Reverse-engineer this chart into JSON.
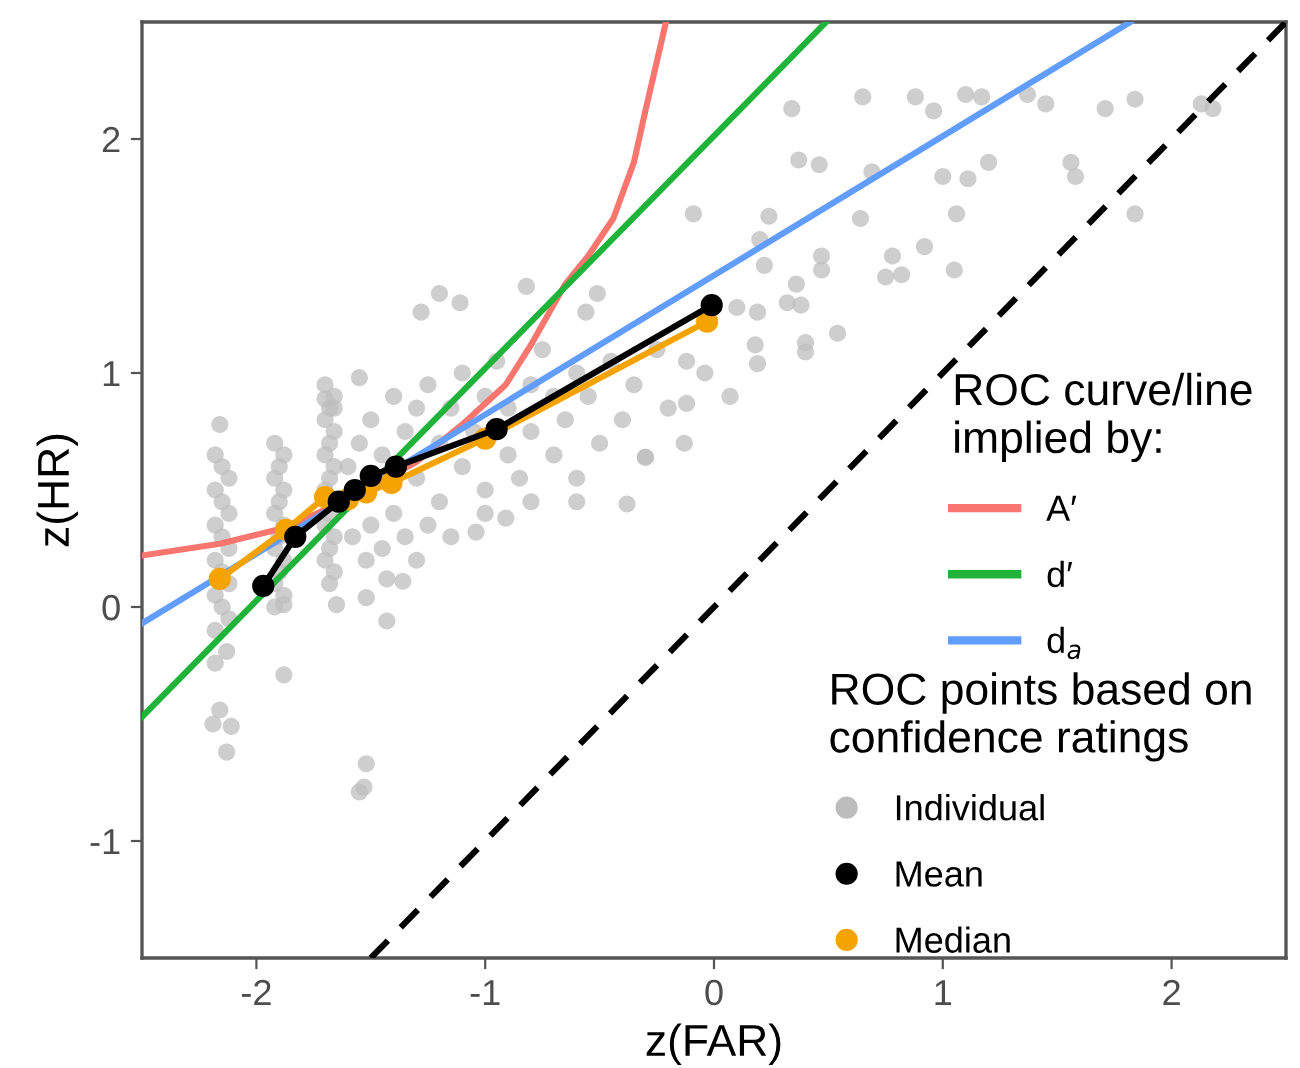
{
  "chart_data": {
    "type": "scatter",
    "xlabel": "z(FAR)",
    "ylabel": "z(HR)",
    "legend_title": [
      "ROC curve/line\nimplied by:",
      "ROC points based on\nconfidence ratings"
    ],
    "xlim": [
      -2.5,
      2.5
    ],
    "ylim": [
      -1.5,
      2.5
    ],
    "xticks": [
      -2,
      -1,
      0,
      1,
      2
    ],
    "yticks": [
      -1,
      0,
      1,
      2
    ],
    "grid": false,
    "legend": "right",
    "series": [
      {
        "name": "Individual",
        "color": "#bdbdbd",
        "marker": "circle",
        "x": [
          0.34,
          0.65,
          0.88,
          0.96,
          1.1,
          1.17,
          1.37,
          1.45,
          1.71,
          1.84,
          2.13,
          2.18,
          0.37,
          0.46,
          0.69,
          1.0,
          1.11,
          1.2,
          1.56,
          1.58,
          -0.09,
          0.24,
          0.64,
          1.06,
          1.84,
          0.2,
          0.47,
          0.22,
          0.47,
          0.78,
          0.92,
          0.75,
          0.82,
          1.05,
          0.36,
          0.32,
          0.38,
          0.1,
          0.19,
          0.54,
          0.4,
          0.4,
          0.18,
          0.19,
          0.07,
          -0.12,
          -0.04,
          -0.12,
          -0.13,
          -0.3,
          -1.2,
          -1.11,
          -1.28,
          -0.82,
          -0.51,
          -0.56,
          -2.16,
          -1.7,
          -1.55,
          -0.3,
          -0.38,
          -1.88,
          -2.16,
          -2.19,
          -2.11,
          -2.13,
          -1.52,
          -1.53,
          -1.55,
          -2.18,
          -2.13,
          -1.43,
          -1.52,
          -1.65,
          -1.92,
          -1.88,
          -1.43,
          -1.36,
          -1.04,
          -0.91,
          -2.18,
          -2.15,
          -2.12,
          -2.18,
          -2.15,
          -2.12,
          -2.18,
          -2.15,
          -2.12,
          -2.18,
          -2.15,
          -2.12,
          -2.18,
          -2.15,
          -2.12,
          -2.18,
          -1.92,
          -1.88,
          -1.9,
          -1.92,
          -1.88,
          -1.9,
          -1.92,
          -1.88,
          -1.9,
          -1.92,
          -1.88,
          -1.9,
          -1.92,
          -1.88,
          -1.7,
          -1.66,
          -1.68,
          -1.7,
          -1.66,
          -1.68,
          -1.7,
          -1.66,
          -1.68,
          -1.7,
          -1.66,
          -1.68,
          -1.7,
          -1.66,
          -1.68,
          -1.7,
          -1.66,
          -1.68,
          -1.55,
          -1.5,
          -1.45,
          -1.4,
          -1.35,
          -1.3,
          -1.3,
          -1.25,
          -1.2,
          -1.2,
          -1.15,
          -1.1,
          -1.1,
          -1.05,
          -1.0,
          -1.0,
          -0.95,
          -0.9,
          -0.9,
          -0.85,
          -0.8,
          -0.8,
          -0.75,
          -0.7,
          -0.7,
          -0.65,
          -0.6,
          -0.6,
          -0.55,
          -0.5,
          -0.45,
          -0.4,
          -1.5,
          -1.45,
          -1.4,
          -1.35,
          -1.25,
          -1.15,
          -1.6,
          -1.58,
          -1.52,
          -1.3,
          -1.0,
          -0.8,
          -0.6,
          -0.35,
          -0.25,
          -0.2
        ],
        "values": [
          2.13,
          2.18,
          2.18,
          2.12,
          2.19,
          2.18,
          2.19,
          2.15,
          2.13,
          2.17,
          2.15,
          2.13,
          1.91,
          1.89,
          1.86,
          1.84,
          1.83,
          1.9,
          1.9,
          1.84,
          1.68,
          1.67,
          1.66,
          1.68,
          1.68,
          1.57,
          1.5,
          1.46,
          1.44,
          1.5,
          1.54,
          1.41,
          1.42,
          1.44,
          1.38,
          1.3,
          1.29,
          1.28,
          1.26,
          1.17,
          1.13,
          1.09,
          1.12,
          1.04,
          0.9,
          1.05,
          1.0,
          0.87,
          0.7,
          0.64,
          1.34,
          1.3,
          1.26,
          1.37,
          1.34,
          1.26,
          0.78,
          0.89,
          0.98,
          0.64,
          0.44,
          -0.29,
          -0.44,
          -0.5,
          -0.51,
          -0.62,
          -0.67,
          -0.77,
          -0.79,
          -0.24,
          -0.19,
          -0.06,
          0.04,
          0.01,
          0.0,
          0.01,
          0.12,
          0.11,
          0.32,
          0.38,
          0.65,
          0.6,
          0.55,
          0.5,
          0.45,
          0.4,
          0.35,
          0.3,
          0.25,
          0.2,
          0.15,
          0.1,
          0.05,
          0.0,
          -0.05,
          -0.1,
          0.7,
          0.65,
          0.6,
          0.55,
          0.5,
          0.45,
          0.4,
          0.35,
          0.3,
          0.25,
          0.2,
          0.15,
          0.1,
          0.05,
          0.95,
          0.9,
          0.85,
          0.8,
          0.75,
          0.7,
          0.65,
          0.6,
          0.55,
          0.5,
          0.85,
          0.4,
          0.35,
          0.3,
          0.25,
          0.2,
          0.15,
          0.1,
          0.7,
          0.8,
          0.65,
          0.9,
          0.75,
          0.55,
          0.85,
          0.95,
          0.7,
          0.45,
          0.85,
          0.6,
          1.0,
          0.75,
          0.9,
          0.5,
          1.05,
          0.65,
          0.85,
          0.55,
          0.95,
          0.75,
          1.1,
          0.65,
          0.9,
          0.8,
          1.0,
          0.55,
          0.9,
          0.7,
          1.05,
          0.8,
          0.35,
          0.25,
          0.4,
          0.3,
          0.35,
          0.3,
          0.6,
          0.3,
          0.2,
          0.2,
          0.4,
          0.45,
          0.45,
          0.95,
          1.1,
          0.85
        ]
      },
      {
        "type": "line",
        "color": "#000000",
        "marker": "none",
        "line_style": "dashed",
        "x": [
          -1.5,
          2.5
        ],
        "values": [
          -1.5,
          2.5
        ]
      },
      {
        "name": "A′",
        "type": "line",
        "color": "#f8766d",
        "marker": "none",
        "line_style": "solid",
        "x": [
          -2.5,
          -2.16,
          -1.87,
          -1.6,
          -1.3,
          -1.1,
          -0.91,
          -0.8,
          -0.65,
          -0.55,
          -0.44,
          -0.35,
          -0.3,
          -0.25,
          -0.21
        ],
        "values": [
          0.22,
          0.27,
          0.34,
          0.46,
          0.62,
          0.78,
          0.95,
          1.12,
          1.38,
          1.5,
          1.66,
          1.9,
          2.12,
          2.33,
          2.5
        ]
      },
      {
        "name": "d′",
        "type": "line",
        "color": "#1fb33a",
        "marker": "none",
        "line_style": "solid",
        "x": [
          -2.5,
          0.49
        ],
        "values": [
          -0.47,
          2.5
        ]
      },
      {
        "name": "d$_{a}$",
        "type": "line",
        "color": "#619cff",
        "marker": "none",
        "line_style": "solid",
        "x": [
          -2.5,
          1.82
        ],
        "values": [
          -0.07,
          2.5
        ]
      },
      {
        "name": "Mean",
        "type": "line",
        "color": "#000000",
        "marker": "circle",
        "line_style": "solid",
        "x": [
          -1.97,
          -1.83,
          -1.64,
          -1.57,
          -1.5,
          -1.39,
          -0.95,
          -0.01
        ],
        "values": [
          0.09,
          0.3,
          0.45,
          0.5,
          0.56,
          0.6,
          0.76,
          1.29
        ]
      },
      {
        "name": "Median",
        "type": "line",
        "color": "#f5a300",
        "marker": "circle",
        "line_style": "solid",
        "x": [
          -2.16,
          -1.87,
          -1.7,
          -1.6,
          -1.52,
          -1.41,
          -1.0,
          -0.03
        ],
        "values": [
          0.12,
          0.33,
          0.47,
          0.46,
          0.49,
          0.53,
          0.72,
          1.22
        ]
      }
    ]
  }
}
